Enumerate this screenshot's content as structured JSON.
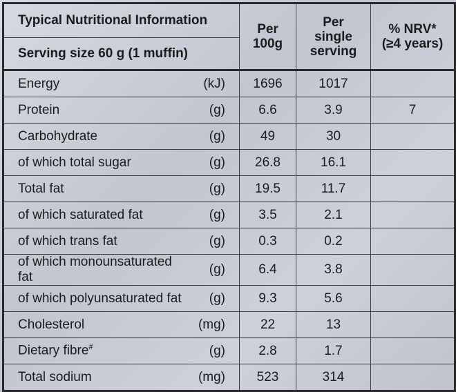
{
  "header": {
    "title": "Typical Nutritional Information",
    "serving": "Serving size 60 g (1 muffin)",
    "col_per100_line1": "Per",
    "col_per100_line2": "100g",
    "col_serving_line1": "Per",
    "col_serving_line2": "single",
    "col_serving_line3": "serving",
    "col_nrv_line1": "% NRV*",
    "col_nrv_line2": "(≥4 years)"
  },
  "rows": [
    {
      "name": "Energy",
      "unit": "(kJ)",
      "per100": "1696",
      "serving": "1017",
      "nrv": ""
    },
    {
      "name": "Protein",
      "unit": "(g)",
      "per100": "6.6",
      "serving": "3.9",
      "nrv": "7"
    },
    {
      "name": "Carbohydrate",
      "unit": "(g)",
      "per100": "49",
      "serving": "30",
      "nrv": ""
    },
    {
      "name": "of which total sugar",
      "unit": "(g)",
      "per100": "26.8",
      "serving": "16.1",
      "nrv": ""
    },
    {
      "name": "Total fat",
      "unit": "(g)",
      "per100": "19.5",
      "serving": "11.7",
      "nrv": ""
    },
    {
      "name": "of which saturated fat",
      "unit": "(g)",
      "per100": "3.5",
      "serving": "2.1",
      "nrv": ""
    },
    {
      "name": "of which trans fat",
      "unit": "(g)",
      "per100": "0.3",
      "serving": "0.2",
      "nrv": ""
    },
    {
      "name": "of which monounsaturated fat",
      "unit": "(g)",
      "per100": "6.4",
      "serving": "3.8",
      "nrv": ""
    },
    {
      "name": "of which polyunsaturated fat",
      "unit": "(g)",
      "per100": "9.3",
      "serving": "5.6",
      "nrv": ""
    },
    {
      "name": "Cholesterol",
      "unit": "(mg)",
      "per100": "22",
      "serving": "13",
      "nrv": ""
    },
    {
      "name": "Dietary fibre",
      "name_sup": "#",
      "unit": "(g)",
      "per100": "2.8",
      "serving": "1.7",
      "nrv": ""
    },
    {
      "name": "Total sodium",
      "unit": "(mg)",
      "per100": "523",
      "serving": "314",
      "nrv": ""
    }
  ]
}
